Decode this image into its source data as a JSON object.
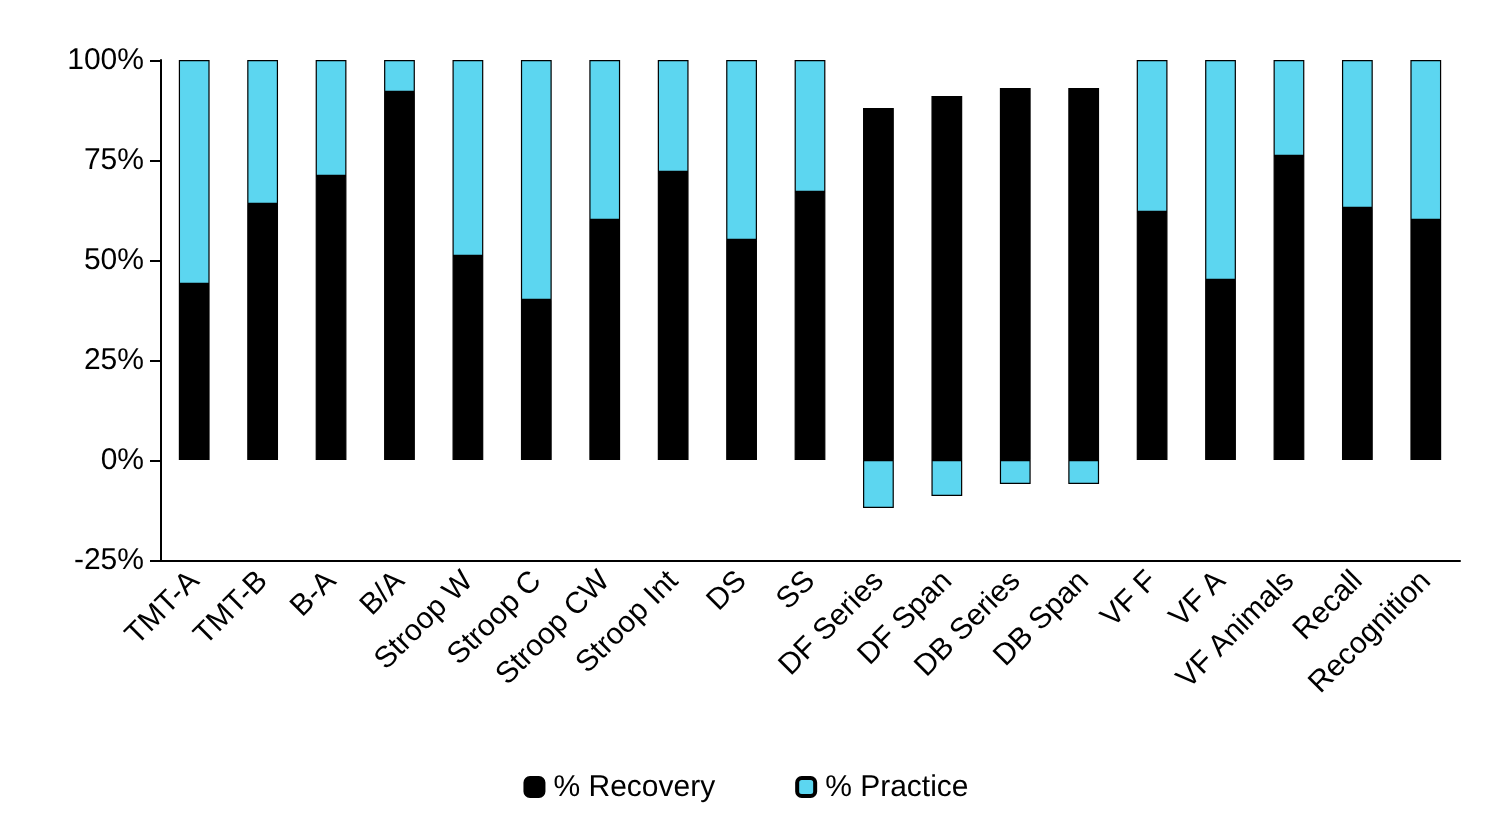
{
  "chart_data": {
    "type": "bar",
    "stacked": true,
    "categories": [
      "TMT-A",
      "TMT-B",
      "B-A",
      "B/A",
      "Stroop W",
      "Stroop C",
      "Stroop CW",
      "Stroop Int",
      "DS",
      "SS",
      "DF Series",
      "DF Span",
      "DB Series",
      "DB Span",
      "VF F",
      "VF A",
      "VF Animals",
      "Recall",
      "Recognition"
    ],
    "series": [
      {
        "name": "% Recovery",
        "color": "#000000",
        "values": [
          44,
          64,
          71,
          92,
          51,
          40,
          60,
          72,
          55,
          67,
          88,
          91,
          93,
          93,
          62,
          45,
          76,
          63,
          60
        ]
      },
      {
        "name": "% Practice",
        "color": "#5cd6f0",
        "values": [
          56,
          36,
          29,
          8,
          49,
          60,
          40,
          28,
          45,
          33,
          -12,
          -9,
          -6,
          -6,
          38,
          55,
          24,
          37,
          40
        ]
      }
    ],
    "ylim": [
      -25,
      100
    ],
    "yticks": [
      {
        "value": -25,
        "label": "-25%"
      },
      {
        "value": 0,
        "label": "0%"
      },
      {
        "value": 25,
        "label": "25%"
      },
      {
        "value": 50,
        "label": "50%"
      },
      {
        "value": 75,
        "label": "75%"
      },
      {
        "value": 100,
        "label": "100%"
      }
    ],
    "grid": false,
    "legend": "bottom"
  }
}
